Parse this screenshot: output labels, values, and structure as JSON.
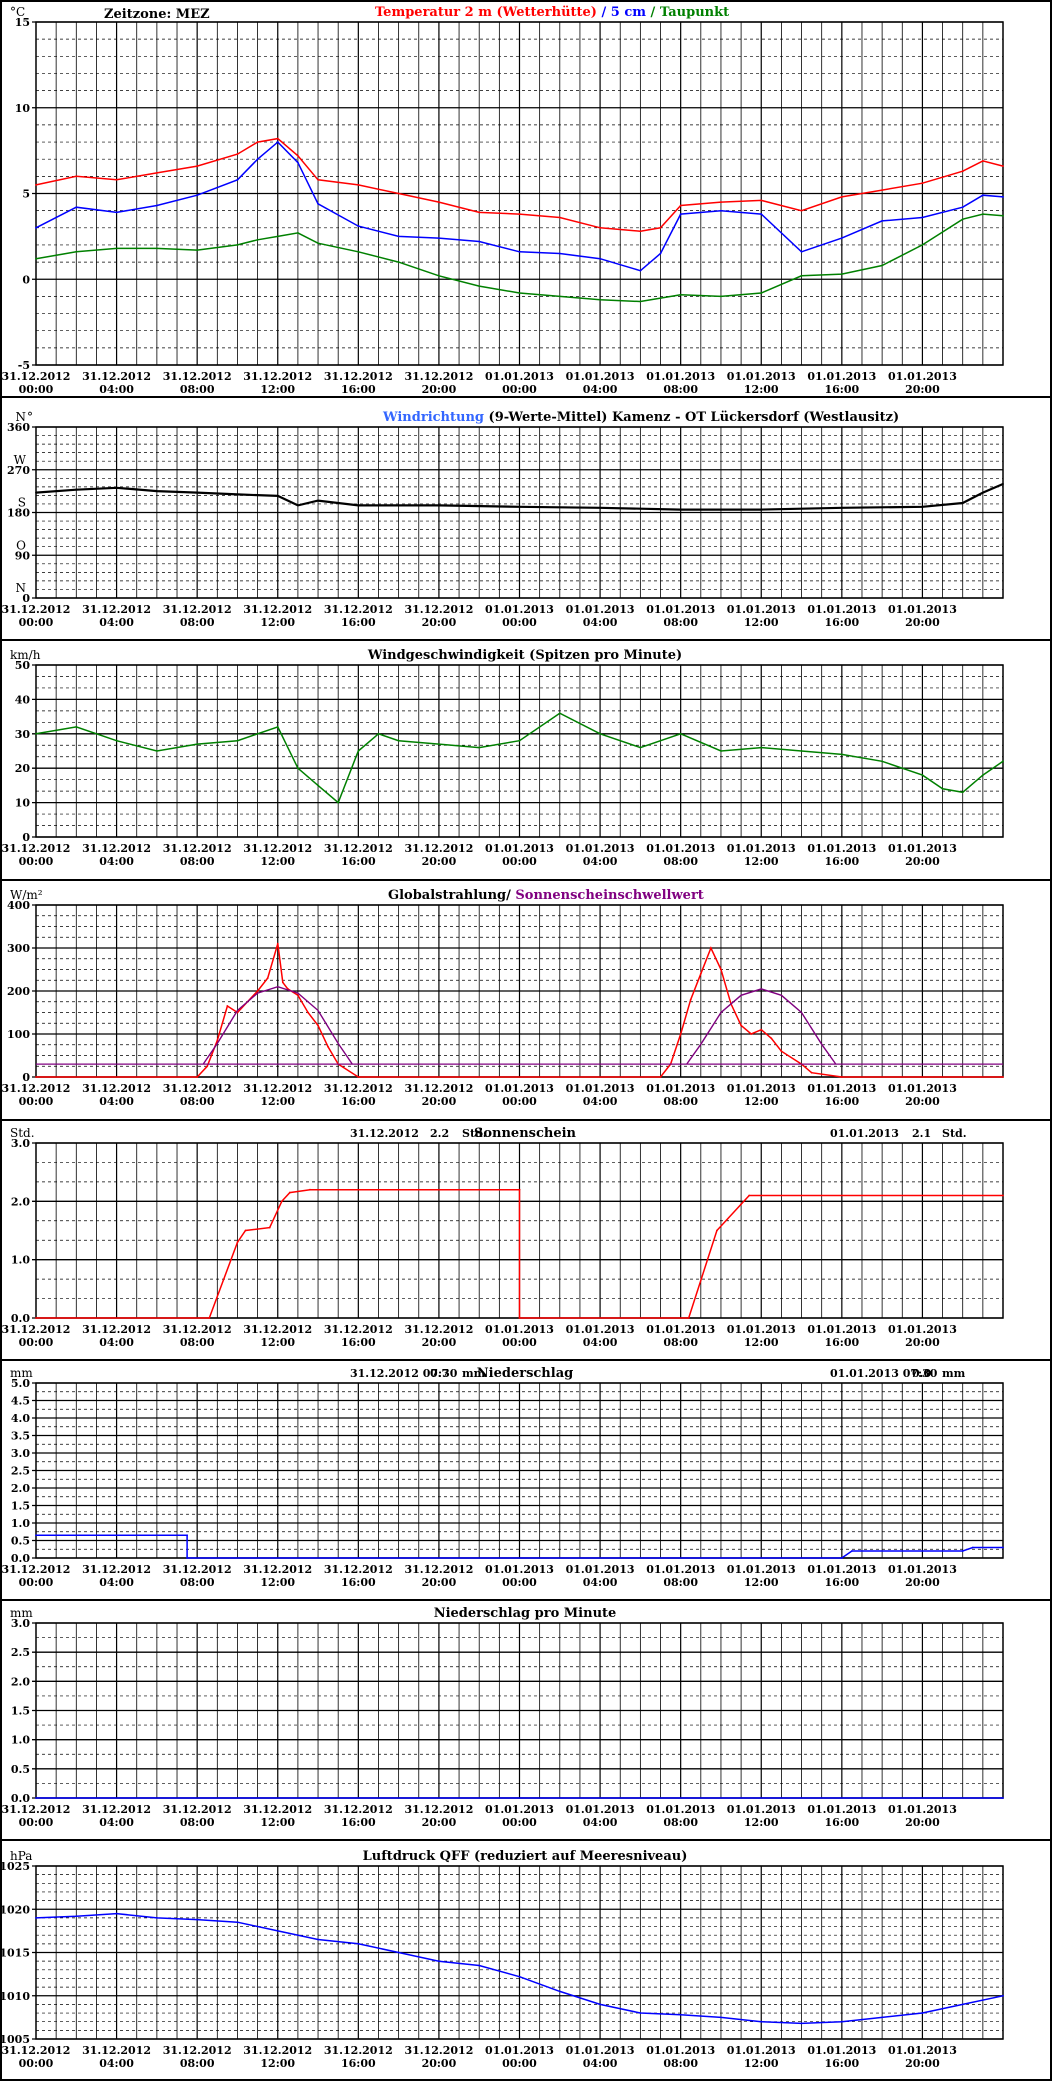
{
  "x_labels": [
    [
      "31.12.2012",
      "00:00"
    ],
    [
      "31.12.2012",
      "04:00"
    ],
    [
      "31.12.2012",
      "08:00"
    ],
    [
      "31.12.2012",
      "12:00"
    ],
    [
      "31.12.2012",
      "16:00"
    ],
    [
      "31.12.2012",
      "20:00"
    ],
    [
      "01.01.2013",
      "00:00"
    ],
    [
      "01.01.2013",
      "04:00"
    ],
    [
      "01.01.2013",
      "08:00"
    ],
    [
      "01.01.2013",
      "12:00"
    ],
    [
      "01.01.2013",
      "16:00"
    ],
    [
      "01.01.2013",
      "20:00"
    ]
  ],
  "colors": {
    "red": "#ff0000",
    "blue": "#0000ff",
    "green": "#008000",
    "purple": "#800080",
    "lightblue": "#3366ff",
    "black": "#000000",
    "navy": "#000080"
  },
  "chart_data": [
    {
      "type": "line",
      "unit": "°C",
      "timezone_label": "Zeitzone: MEZ",
      "title_parts": [
        {
          "text": "Temperatur 2 m (Wetterhütte)",
          "color": "#ff0000"
        },
        {
          "text": "  /  ",
          "color": "#0000ff"
        },
        {
          "text": "5 cm",
          "color": "#0000ff"
        },
        {
          "text": " / ",
          "color": "#008000"
        },
        {
          "text": "Taupunkt",
          "color": "#008000"
        }
      ],
      "ylim": [
        -5,
        15
      ],
      "yticks": [
        "-5",
        "0",
        "5",
        "10",
        "15"
      ],
      "x_hours": [
        0,
        2,
        4,
        6,
        8,
        10,
        11,
        12,
        13,
        14,
        16,
        18,
        20,
        22,
        24,
        26,
        28,
        30,
        31,
        32,
        34,
        36,
        38,
        40,
        42,
        44,
        46,
        47,
        48
      ],
      "series": [
        {
          "name": "Temperatur 2 m (Wetterhütte)",
          "color": "#ff0000",
          "values": [
            5.5,
            6.0,
            5.8,
            6.2,
            6.6,
            7.3,
            8.0,
            8.2,
            7.2,
            5.8,
            5.5,
            5.0,
            4.5,
            3.9,
            3.8,
            3.6,
            3.0,
            2.8,
            3.0,
            4.3,
            4.5,
            4.6,
            4.0,
            4.8,
            5.2,
            5.6,
            6.3,
            6.9,
            6.6
          ]
        },
        {
          "name": "5 cm",
          "color": "#0000ff",
          "values": [
            3.0,
            4.2,
            3.9,
            4.3,
            4.9,
            5.8,
            7.0,
            8.0,
            6.8,
            4.4,
            3.1,
            2.5,
            2.4,
            2.2,
            1.6,
            1.5,
            1.2,
            0.5,
            1.5,
            3.8,
            4.0,
            3.8,
            1.6,
            2.4,
            3.4,
            3.6,
            4.2,
            4.9,
            4.8
          ]
        },
        {
          "name": "Taupunkt",
          "color": "#008000",
          "values": [
            1.2,
            1.6,
            1.8,
            1.8,
            1.7,
            2.0,
            2.3,
            2.5,
            2.7,
            2.1,
            1.6,
            1.0,
            0.2,
            -0.4,
            -0.8,
            -1.0,
            -1.2,
            -1.3,
            -1.1,
            -0.9,
            -1.0,
            -0.8,
            0.2,
            0.3,
            0.8,
            2.0,
            3.5,
            3.8,
            3.7
          ]
        }
      ]
    },
    {
      "type": "line",
      "title_parts": [
        {
          "text": "Windrichtung",
          "color": "#3366ff"
        },
        {
          "text": " (9-Werte-Mittel)",
          "color": "#000000"
        },
        {
          "text": "          Kamenz - OT Lückersdorf (Westlausitz)",
          "color": "#000000"
        }
      ],
      "ylim": [
        0,
        360
      ],
      "yticks": [
        "0",
        "90",
        "180",
        "270",
        "360"
      ],
      "compass": [
        {
          "label": "N",
          "value": 360
        },
        {
          "label": "W",
          "value": 270
        },
        {
          "label": "S",
          "value": 180
        },
        {
          "label": "O",
          "value": 90
        },
        {
          "label": "N",
          "value": 0
        }
      ],
      "degree_mark": "°",
      "x_hours": [
        0,
        2,
        4,
        6,
        8,
        10,
        12,
        13,
        14,
        16,
        20,
        24,
        28,
        32,
        36,
        40,
        44,
        46,
        47,
        48
      ],
      "series": [
        {
          "name": "Windrichtung (9-Werte-Mittel)",
          "color": "#000000",
          "values": [
            222,
            228,
            232,
            225,
            222,
            218,
            215,
            195,
            205,
            195,
            195,
            192,
            190,
            186,
            186,
            190,
            192,
            200,
            222,
            240
          ]
        }
      ]
    },
    {
      "type": "line",
      "unit": "km/h",
      "title": "Windgeschwindigkeit (Spitzen pro Minute)",
      "ylim": [
        0,
        50
      ],
      "yticks": [
        "0",
        "10",
        "20",
        "30",
        "40",
        "50"
      ],
      "x_hours": [
        0,
        2,
        4,
        6,
        8,
        10,
        12,
        13,
        14,
        15,
        16,
        17,
        18,
        20,
        22,
        24,
        26,
        28,
        30,
        32,
        34,
        36,
        38,
        40,
        42,
        44,
        45,
        46,
        47,
        48
      ],
      "series": [
        {
          "name": "Windgeschwindigkeit",
          "color": "#008000",
          "values": [
            30,
            32,
            28,
            25,
            27,
            28,
            32,
            20,
            15,
            10,
            25,
            30,
            28,
            27,
            26,
            28,
            36,
            30,
            26,
            30,
            25,
            26,
            25,
            24,
            22,
            18,
            14,
            13,
            18,
            22
          ]
        }
      ]
    },
    {
      "type": "line",
      "unit": "W/m²",
      "title_parts": [
        {
          "text": "Globalstrahlung/ ",
          "color": "#000000"
        },
        {
          "text": "Sonnenscheinschwellwert",
          "color": "#800080"
        }
      ],
      "ylim": [
        0,
        400
      ],
      "yticks": [
        "0",
        "100",
        "200",
        "300",
        "400"
      ],
      "x_hours": [
        0,
        8,
        8.5,
        9,
        9.5,
        10,
        10.5,
        11,
        11.5,
        12,
        12.25,
        12.5,
        13,
        13.5,
        14,
        14.5,
        15,
        16,
        31,
        31.5,
        32,
        32.5,
        33,
        33.5,
        34,
        34.5,
        35,
        35.5,
        36,
        36.5,
        37,
        38,
        38.5,
        40,
        48
      ],
      "series": [
        {
          "name": "Globalstrahlung",
          "color": "#ff0000",
          "values": [
            0,
            0,
            25,
            85,
            165,
            150,
            175,
            200,
            230,
            310,
            220,
            205,
            190,
            150,
            120,
            70,
            30,
            0,
            0,
            30,
            100,
            180,
            240,
            300,
            250,
            170,
            120,
            100,
            110,
            90,
            60,
            30,
            10,
            0,
            0
          ]
        },
        {
          "name": "Sonnenscheinschwellwert",
          "color": "#800080",
          "threshold_x": [
            0,
            8.3,
            48
          ],
          "threshold": 30,
          "arc": {
            "x": [
              8.3,
              9,
              10,
              11,
              12,
              13,
              14,
              15,
              15.7
            ],
            "y": [
              30,
              78,
              155,
              195,
              210,
              195,
              155,
              78,
              30
            ]
          },
          "arc2": {
            "x": [
              32.3,
              33,
              34,
              35,
              36,
              37,
              38,
              39,
              39.7
            ],
            "y": [
              30,
              76,
              150,
              190,
              205,
              190,
              150,
              76,
              30
            ]
          }
        }
      ]
    },
    {
      "type": "line",
      "unit": "Std.",
      "title": "Sonnenschein",
      "day1": {
        "date": "31.12.2012",
        "value": "2.2",
        "unit": "Std."
      },
      "day2": {
        "date": "01.01.2013",
        "value": "2.1",
        "unit": "Std."
      },
      "ylim": [
        0,
        3
      ],
      "yticks": [
        "0.0",
        "1.0",
        "2.0",
        "3.0"
      ],
      "x_hours": [
        0,
        8.6,
        10,
        10.4,
        11.6,
        12.2,
        12.6,
        13.6,
        24,
        24,
        32.4,
        33.8,
        35,
        35.4,
        48
      ],
      "series": [
        {
          "name": "Sonnenschein",
          "color": "#ff0000",
          "values": [
            0,
            0,
            1.3,
            1.5,
            1.55,
            2.0,
            2.15,
            2.2,
            2.2,
            0,
            0,
            1.5,
            1.95,
            2.1,
            2.1
          ]
        }
      ]
    },
    {
      "type": "line",
      "unit": "mm",
      "title": "Niederschlag",
      "day1": {
        "date": "31.12.2012 07:30",
        "value": "0.7",
        "unit": "mm"
      },
      "day2": {
        "date": "01.01.2013 07:30",
        "value": "0.0",
        "unit": "mm"
      },
      "ylim": [
        0,
        5
      ],
      "yticks": [
        "0.0",
        "0.5",
        "1.0",
        "1.5",
        "2.0",
        "2.5",
        "3.0",
        "3.5",
        "4.0",
        "4.5",
        "5.0"
      ],
      "x_hours": [
        0,
        7.5,
        7.5,
        40,
        40.5,
        46,
        46.5,
        48
      ],
      "series": [
        {
          "name": "Niederschlag",
          "color": "#0000ff",
          "values": [
            0.65,
            0.65,
            0.0,
            0.0,
            0.2,
            0.2,
            0.3,
            0.3
          ]
        }
      ]
    },
    {
      "type": "line",
      "unit": "mm",
      "title": "Niederschlag pro Minute",
      "ylim": [
        0,
        3
      ],
      "yticks": [
        "0.0",
        "0.5",
        "1.0",
        "1.5",
        "2.0",
        "2.5",
        "3.0"
      ],
      "x_hours": [
        0,
        48
      ],
      "series": [
        {
          "name": "Niederschlag pro Minute",
          "color": "#0000ff",
          "values": [
            0,
            0
          ]
        }
      ]
    },
    {
      "type": "line",
      "unit": "hPa",
      "title": "Luftdruck QFF (reduziert auf Meeresniveau)",
      "ylim": [
        1005,
        1025
      ],
      "yticks": [
        "1005",
        "1010",
        "1015",
        "1020",
        "1025"
      ],
      "x_hours": [
        0,
        2,
        4,
        6,
        8,
        10,
        12,
        14,
        16,
        18,
        20,
        22,
        24,
        26,
        28,
        30,
        32,
        34,
        36,
        38,
        40,
        42,
        44,
        46,
        48
      ],
      "series": [
        {
          "name": "Luftdruck QFF",
          "color": "#0000ff",
          "values": [
            1019.0,
            1019.2,
            1019.5,
            1019.0,
            1018.8,
            1018.5,
            1017.5,
            1016.5,
            1016.0,
            1015.0,
            1014.0,
            1013.5,
            1012.2,
            1010.5,
            1009.0,
            1008.0,
            1007.8,
            1007.5,
            1007.0,
            1006.8,
            1007.0,
            1007.5,
            1008.0,
            1009.0,
            1010.0
          ]
        }
      ]
    }
  ]
}
